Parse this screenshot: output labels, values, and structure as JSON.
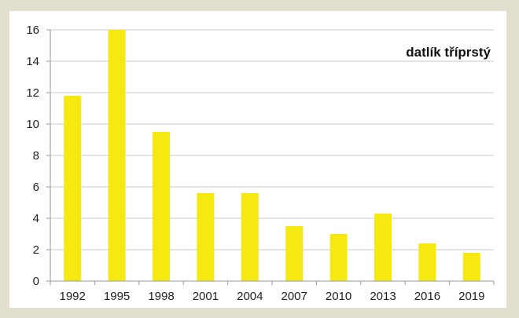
{
  "chart_data": {
    "type": "bar",
    "title": "datlík tříprstý",
    "xlabel": "",
    "ylabel": "",
    "categories": [
      "1992",
      "1995",
      "1998",
      "2001",
      "2004",
      "2007",
      "2010",
      "2013",
      "2016",
      "2019"
    ],
    "values": [
      11.8,
      16,
      9.5,
      5.6,
      5.6,
      3.5,
      3.0,
      4.3,
      2.4,
      1.8
    ],
    "ylim": [
      0,
      16
    ],
    "yticks": [
      0,
      2,
      4,
      6,
      8,
      10,
      12,
      14,
      16
    ],
    "grid": true,
    "legend": "none",
    "colors": {
      "bar": "#f5e911",
      "grid": "#c8c8c8",
      "axis": "#9a9a9a",
      "background": "#e2dfcf",
      "plot": "#ffffff"
    }
  }
}
